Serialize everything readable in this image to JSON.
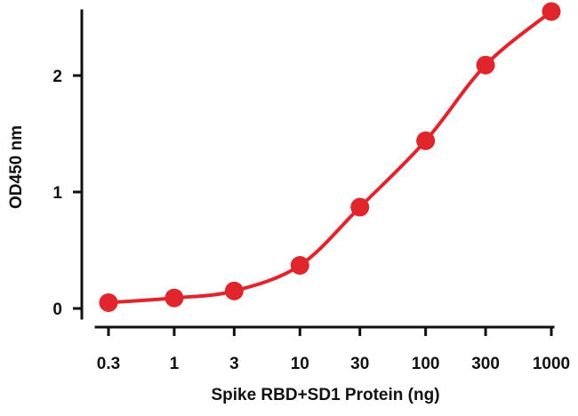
{
  "chart_data": {
    "type": "scatter",
    "xlabel": "Spike RBD+SD1 Protein (ng)",
    "ylabel": "OD450 nm",
    "xscale": "log",
    "x_ticks": [
      "0.3",
      "1",
      "3",
      "10",
      "30",
      "100",
      "300",
      "1000"
    ],
    "x_tick_values": [
      0.3,
      1,
      3,
      10,
      30,
      100,
      300,
      1000
    ],
    "y_ticks": [
      "0",
      "1",
      "2"
    ],
    "y_tick_values": [
      0,
      1,
      2
    ],
    "ylim": [
      -0.08,
      2.6
    ],
    "grid": false,
    "fit_curve": "sigmoidal",
    "series": [
      {
        "color": "#e0252d",
        "x": [
          0.3,
          1,
          3,
          10,
          30,
          100,
          300,
          1000
        ],
        "y": [
          0.05,
          0.09,
          0.15,
          0.37,
          0.87,
          1.44,
          2.09,
          2.55
        ]
      }
    ]
  }
}
